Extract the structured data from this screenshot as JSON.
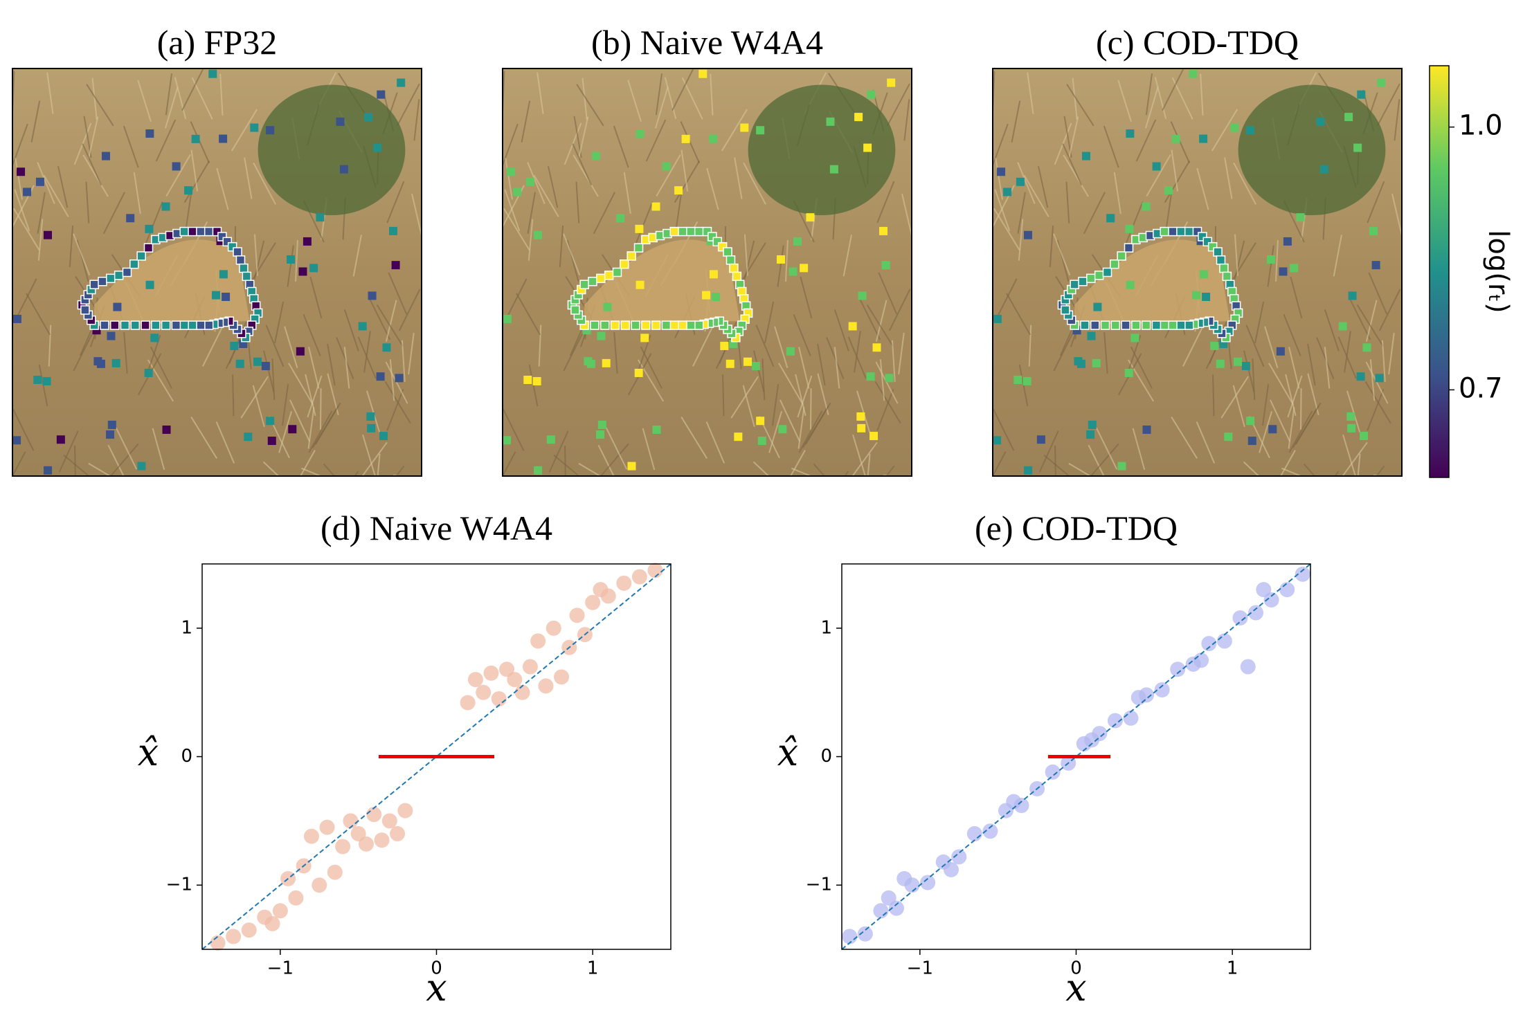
{
  "panels": [
    {
      "title": "(a) FP32"
    },
    {
      "title": "(b) Naive W4A4"
    },
    {
      "title": "(c) COD-TDQ"
    }
  ],
  "colorbar": {
    "label": "log(rₜ)",
    "ylim": [
      0.6,
      1.07
    ],
    "yticks": [
      0.7,
      {
        "value": 1,
        "label": "1.0"
      }
    ]
  },
  "chart_data": [
    {
      "type": "scatter",
      "title": "(d) Naive W4A4",
      "xlabel": "x",
      "ylabel": "x̂",
      "xlim": [
        -1.5,
        1.5
      ],
      "ylim": [
        -1.5,
        1.5
      ],
      "xticks": [
        {
          "value": -1,
          "label": "−1"
        },
        0,
        1
      ],
      "yticks": [
        {
          "value": -1,
          "label": "−1"
        },
        0,
        1
      ],
      "series": [
        {
          "style": "points",
          "color": "#f0bba4",
          "x": [
            0.2,
            0.3,
            0.4,
            0.5,
            0.35,
            0.6,
            0.7,
            0.55,
            0.8,
            0.25,
            0.45,
            0.65,
            0.75,
            0.9,
            1.0,
            1.1,
            1.2,
            1.3,
            1.4,
            0.85,
            0.95,
            1.05,
            -0.2,
            -0.3,
            -0.4,
            -0.5,
            -0.35,
            -0.6,
            -0.7,
            -0.55,
            -0.8,
            -0.25,
            -0.45,
            -0.65,
            -0.75,
            -0.9,
            -1.0,
            -1.1,
            -1.2,
            -1.3,
            -1.4,
            -0.85,
            -0.95,
            -1.05
          ],
          "values": [
            0.42,
            0.5,
            0.45,
            0.6,
            0.65,
            0.7,
            0.55,
            0.5,
            0.62,
            0.6,
            0.68,
            0.9,
            1.0,
            1.1,
            1.2,
            1.25,
            1.35,
            1.4,
            1.45,
            0.85,
            0.95,
            1.3,
            -0.42,
            -0.5,
            -0.45,
            -0.6,
            -0.65,
            -0.7,
            -0.55,
            -0.5,
            -0.62,
            -0.6,
            -0.68,
            -0.9,
            -1.0,
            -1.1,
            -1.2,
            -1.25,
            -1.35,
            -1.4,
            -1.45,
            -0.85,
            -0.95,
            -1.3
          ]
        },
        {
          "style": "dashed",
          "color": "#1f77b4",
          "x": [
            -1.5,
            1.5
          ],
          "values": [
            -1.5,
            1.5
          ]
        },
        {
          "style": "line",
          "color": "#ee0000",
          "x": [
            -0.37,
            0.37
          ],
          "values": [
            0,
            0
          ]
        }
      ]
    },
    {
      "type": "scatter",
      "title": "(e) COD-TDQ",
      "xlabel": "x",
      "ylabel": "x̂",
      "xlim": [
        -1.5,
        1.5
      ],
      "ylim": [
        -1.5,
        1.5
      ],
      "xticks": [
        {
          "value": -1,
          "label": "−1"
        },
        0,
        1
      ],
      "yticks": [
        {
          "value": -1,
          "label": "−1"
        },
        0,
        1
      ],
      "series": [
        {
          "style": "points",
          "color": "#b3b8f0",
          "x": [
            -1.45,
            -1.35,
            -1.25,
            -1.15,
            -1.05,
            -0.95,
            -0.85,
            -0.75,
            -0.65,
            -0.55,
            -0.45,
            -0.35,
            -0.25,
            -0.15,
            -0.05,
            0.05,
            0.1,
            0.15,
            0.25,
            0.35,
            0.45,
            0.55,
            0.65,
            0.75,
            0.85,
            0.95,
            1.05,
            1.15,
            1.25,
            1.35,
            1.45,
            -1.2,
            -0.8,
            -0.4,
            0.4,
            0.8,
            1.2,
            1.1,
            -1.1
          ],
          "values": [
            -1.4,
            -1.38,
            -1.2,
            -1.18,
            -1.0,
            -0.98,
            -0.82,
            -0.78,
            -0.6,
            -0.58,
            -0.42,
            -0.38,
            -0.25,
            -0.12,
            -0.05,
            0.1,
            0.13,
            0.18,
            0.28,
            0.3,
            0.48,
            0.52,
            0.68,
            0.72,
            0.88,
            0.9,
            1.08,
            1.12,
            1.22,
            1.3,
            1.42,
            -1.1,
            -0.88,
            -0.35,
            0.46,
            0.75,
            1.3,
            0.7,
            -0.95
          ]
        },
        {
          "style": "dashed",
          "color": "#1f77b4",
          "x": [
            -1.5,
            1.5
          ],
          "values": [
            -1.5,
            1.5
          ]
        },
        {
          "style": "line",
          "color": "#ee0000",
          "x": [
            -0.18,
            0.22
          ],
          "values": [
            0,
            0
          ]
        }
      ]
    }
  ]
}
